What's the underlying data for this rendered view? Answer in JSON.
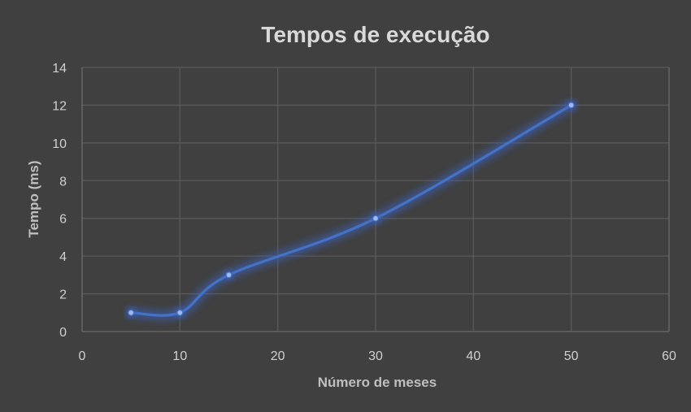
{
  "colors": {
    "background": "#404040",
    "series": "#4472c4",
    "glow": "#3a63c8",
    "grid": "#5a5a5a",
    "text": "#d0d0d0"
  },
  "chart_data": {
    "type": "line",
    "title": "Tempos de execução",
    "xlabel": "Número de meses",
    "ylabel": "Tempo (ms)",
    "xlim": [
      0,
      60
    ],
    "ylim": [
      0,
      14
    ],
    "xticks": [
      0,
      10,
      20,
      30,
      40,
      50,
      60
    ],
    "yticks": [
      0,
      2,
      4,
      6,
      8,
      10,
      12,
      14
    ],
    "grid": true,
    "smooth": true,
    "series": [
      {
        "x": [
          5,
          10,
          15,
          30,
          50
        ],
        "y": [
          1,
          1,
          3,
          6,
          12
        ]
      }
    ]
  }
}
